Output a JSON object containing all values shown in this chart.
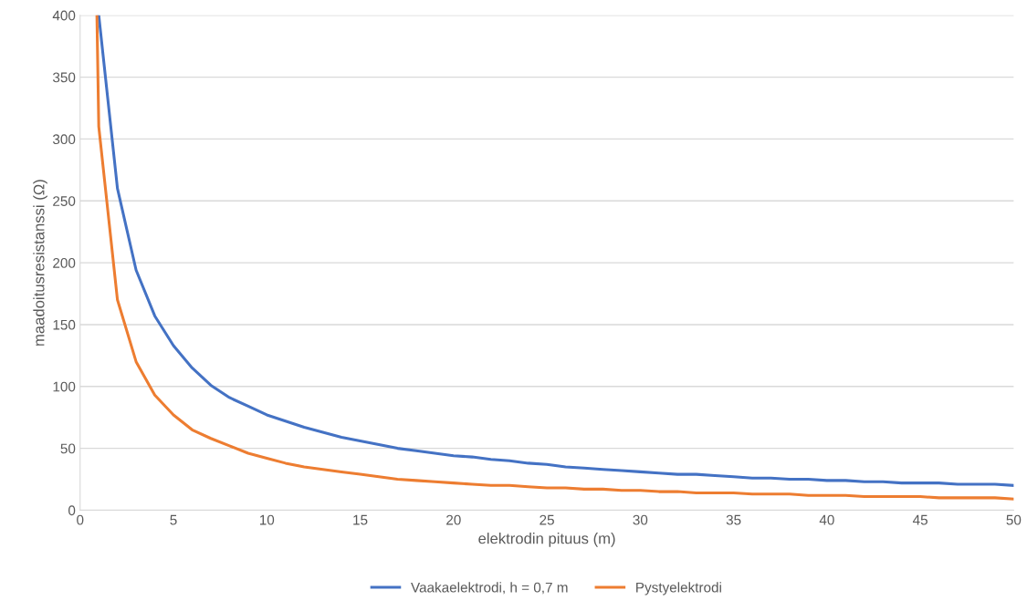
{
  "chart_data": {
    "type": "line",
    "xlabel": "elektrodin pituus (m)",
    "ylabel": "maadoitusresistanssi (Ω)",
    "xlim": [
      0,
      50
    ],
    "xticks": [
      0,
      5,
      10,
      15,
      20,
      25,
      30,
      35,
      40,
      45,
      50
    ],
    "ylim": [
      0,
      400
    ],
    "yticks": [
      0,
      50,
      100,
      150,
      200,
      250,
      300,
      350,
      400
    ],
    "grid": "y",
    "legend": "bottom",
    "marker": "none",
    "line_style": "solid",
    "series": [
      {
        "name": "Vaakaelektrodi, h = 0,7 m",
        "color": "#4472c4",
        "x": [
          1,
          2,
          3,
          4,
          5,
          6,
          7,
          8,
          9,
          10,
          11,
          12,
          13,
          14,
          15,
          16,
          17,
          18,
          19,
          20,
          21,
          22,
          23,
          24,
          25,
          26,
          27,
          28,
          29,
          30,
          31,
          32,
          33,
          34,
          35,
          36,
          37,
          38,
          39,
          40,
          41,
          42,
          43,
          44,
          45,
          46,
          47,
          48,
          49,
          50
        ],
        "values": [
          400,
          260,
          194,
          157,
          133,
          115,
          101,
          91,
          84,
          77,
          72,
          67,
          63,
          59,
          56,
          53,
          50,
          48,
          46,
          44,
          43,
          41,
          40,
          38,
          37,
          35,
          34,
          33,
          32,
          31,
          30,
          29,
          29,
          28,
          27,
          26,
          26,
          25,
          25,
          24,
          24,
          23,
          23,
          22,
          22,
          22,
          21,
          21,
          21,
          20
        ]
      },
      {
        "name": "Pystyelektrodi",
        "color": "#ed7d31",
        "x": [
          0.9,
          1,
          2,
          3,
          4,
          5,
          6,
          7,
          8,
          9,
          10,
          11,
          12,
          13,
          14,
          15,
          16,
          17,
          18,
          19,
          20,
          21,
          22,
          23,
          24,
          25,
          26,
          27,
          28,
          29,
          30,
          31,
          32,
          33,
          34,
          35,
          36,
          37,
          38,
          39,
          40,
          41,
          42,
          43,
          44,
          45,
          46,
          47,
          48,
          49,
          50
        ],
        "values": [
          400,
          310,
          170,
          120,
          93,
          77,
          65,
          58,
          52,
          46,
          42,
          38,
          35,
          33,
          31,
          29,
          27,
          25,
          24,
          23,
          22,
          21,
          20,
          20,
          19,
          18,
          18,
          17,
          17,
          16,
          16,
          15,
          15,
          14,
          14,
          14,
          13,
          13,
          13,
          12,
          12,
          12,
          11,
          11,
          11,
          11,
          10,
          10,
          10,
          10,
          9
        ]
      }
    ]
  }
}
